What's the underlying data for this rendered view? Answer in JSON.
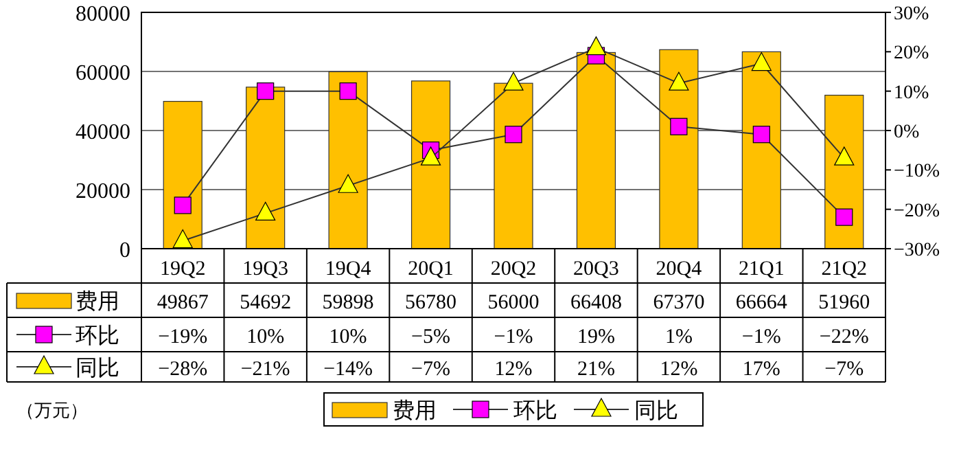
{
  "chart_data": {
    "type": "bar",
    "categories": [
      "19Q2",
      "19Q3",
      "19Q4",
      "20Q1",
      "20Q2",
      "20Q3",
      "20Q4",
      "21Q1",
      "21Q2"
    ],
    "series": [
      {
        "name": "费用",
        "type": "bar",
        "color": "#ffc000",
        "values": [
          49867,
          54692,
          59898,
          56780,
          56000,
          66408,
          67370,
          66664,
          51960
        ],
        "value_labels": [
          "49867",
          "54692",
          "59898",
          "56780",
          "56000",
          "66408",
          "67370",
          "66664",
          "51960"
        ]
      },
      {
        "name": "环比",
        "type": "line",
        "axis": "y2",
        "color": "#ff00ff",
        "marker": "square",
        "values": [
          -19,
          10,
          10,
          -5,
          -1,
          19,
          1,
          -1,
          -22
        ],
        "value_labels": [
          "−19%",
          "10%",
          "10%",
          "−5%",
          "−1%",
          "19%",
          "1%",
          "−1%",
          "−22%"
        ]
      },
      {
        "name": "同比",
        "type": "line",
        "axis": "y2",
        "color": "#ffff00",
        "marker": "triangle",
        "values": [
          -28,
          -21,
          -14,
          -7,
          12,
          21,
          12,
          17,
          -7
        ],
        "value_labels": [
          "−28%",
          "−21%",
          "−14%",
          "−7%",
          "12%",
          "21%",
          "12%",
          "17%",
          "−7%"
        ]
      }
    ],
    "ylim": [
      0,
      80000
    ],
    "yticks": [
      0,
      20000,
      40000,
      60000,
      80000
    ],
    "y2lim": [
      -30,
      30
    ],
    "y2ticks": [
      {
        "value": -30,
        "label": "−30%"
      },
      {
        "value": -20,
        "label": "−20%"
      },
      {
        "value": -10,
        "label": "−10%"
      },
      {
        "value": 0,
        "label": "0%"
      },
      {
        "value": 10,
        "label": "10%"
      },
      {
        "value": 20,
        "label": "20%"
      },
      {
        "value": 30,
        "label": "30%"
      }
    ],
    "grid": "y",
    "legend": "bottom",
    "annotations": [
      "（万元）"
    ]
  }
}
